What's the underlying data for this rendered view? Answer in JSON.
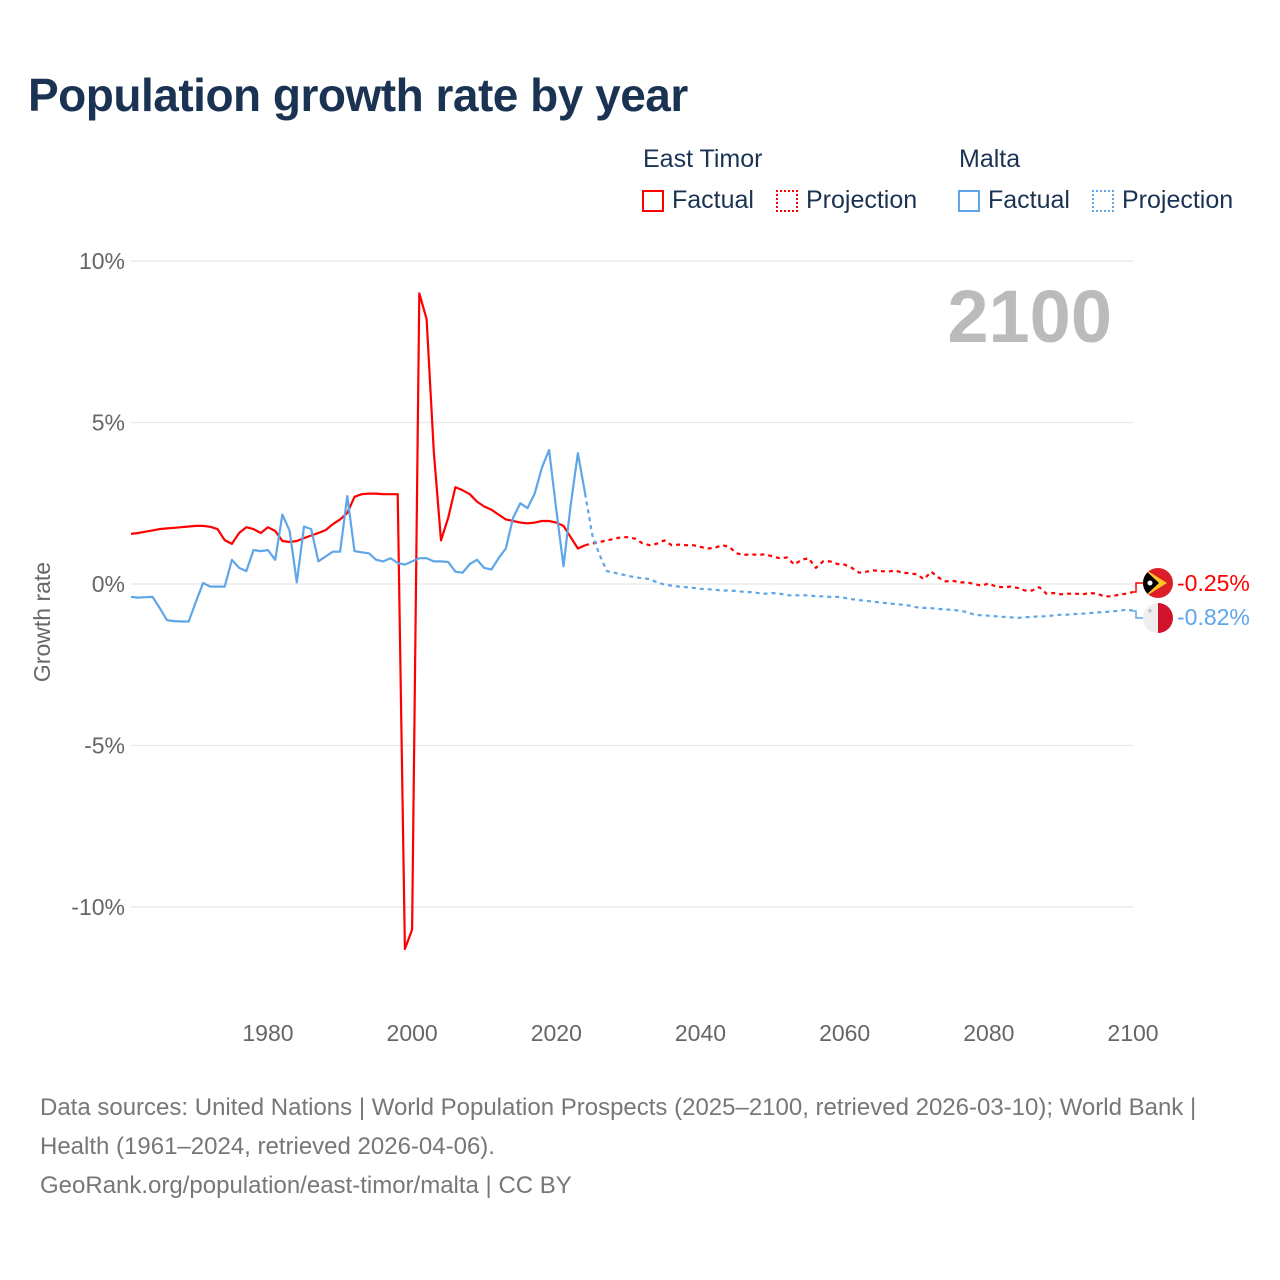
{
  "title": "Population growth rate by year",
  "legend": {
    "groups": [
      {
        "name": "East Timor",
        "color": "#ff0000",
        "items": [
          "Factual",
          "Projection"
        ]
      },
      {
        "name": "Malta",
        "color": "#5ea6e8",
        "items": [
          "Factual",
          "Projection"
        ]
      }
    ]
  },
  "year_label": "2100",
  "end_labels": {
    "east_timor": "-0.25%",
    "malta": "-0.82%"
  },
  "footer": {
    "sources": "Data sources: United Nations | World Population Prospects (2025–2100, retrieved 2026-03-10); World Bank | Health (1961–2024, retrieved 2026-04-06).",
    "credit": "GeoRank.org/population/east-timor/malta | CC BY"
  },
  "chart_data": {
    "type": "line",
    "title": "Population growth rate by year",
    "xlabel": "",
    "ylabel": "Growth rate",
    "xlim": [
      1961,
      2100
    ],
    "ylim": [
      -12,
      10
    ],
    "yticks": [
      10,
      5,
      0,
      -5,
      -10
    ],
    "ytick_labels": [
      "10%",
      "5%",
      "0%",
      "-5%",
      "-10%"
    ],
    "xticks": [
      1980,
      2000,
      2020,
      2040,
      2060,
      2080,
      2100
    ],
    "xtick_labels": [
      "1980",
      "2000",
      "2020",
      "2040",
      "2060",
      "2080",
      "2100"
    ],
    "grid": true,
    "legend_position": "top-right",
    "series": [
      {
        "name": "East Timor Factual",
        "color": "#ff0000",
        "style": "solid",
        "start": 1961,
        "values": [
          1.55,
          1.58,
          1.62,
          1.66,
          1.7,
          1.72,
          1.74,
          1.76,
          1.78,
          1.8,
          1.8,
          1.77,
          1.7,
          1.36,
          1.24,
          1.58,
          1.76,
          1.7,
          1.58,
          1.76,
          1.64,
          1.33,
          1.3,
          1.33,
          1.42,
          1.5,
          1.58,
          1.67,
          1.85,
          2.0,
          2.2,
          2.7,
          2.78,
          2.8,
          2.8,
          2.78,
          2.78,
          2.78,
          -11.3,
          -10.7,
          9.0,
          8.2,
          4.1,
          1.35,
          2.05,
          3.0,
          2.9,
          2.78,
          2.55,
          2.4,
          2.3,
          2.15,
          2.0,
          1.95,
          1.9,
          1.88,
          1.9,
          1.95,
          1.95,
          1.9,
          1.8,
          1.45,
          1.1,
          1.2
        ]
      },
      {
        "name": "East Timor Projection",
        "color": "#ff0000",
        "style": "dotted",
        "start": 2025,
        "values": [
          1.25,
          1.3,
          1.35,
          1.4,
          1.45,
          1.45,
          1.4,
          1.25,
          1.2,
          1.25,
          1.35,
          1.2,
          1.22,
          1.2,
          1.2,
          1.15,
          1.1,
          1.12,
          1.2,
          1.15,
          0.95,
          0.9,
          0.92,
          0.9,
          0.92,
          0.85,
          0.8,
          0.82,
          0.6,
          0.75,
          0.8,
          0.5,
          0.7,
          0.7,
          0.62,
          0.6,
          0.5,
          0.35,
          0.38,
          0.42,
          0.4,
          0.38,
          0.42,
          0.35,
          0.33,
          0.3,
          0.15,
          0.38,
          0.2,
          0.08,
          0.1,
          0.05,
          0.05,
          0.0,
          -0.05,
          0.02,
          -0.08,
          -0.1,
          -0.08,
          -0.12,
          -0.2,
          -0.2,
          -0.1,
          -0.3,
          -0.28,
          -0.32,
          -0.3,
          -0.3,
          -0.32,
          -0.28,
          -0.3,
          -0.38,
          -0.38,
          -0.33,
          -0.3,
          -0.25
        ]
      },
      {
        "name": "Malta Factual",
        "color": "#5ea6e8",
        "style": "solid",
        "start": 1961,
        "values": [
          -0.4,
          -0.42,
          -0.41,
          -0.4,
          -0.75,
          -1.12,
          -1.15,
          -1.16,
          -1.16,
          -0.55,
          0.03,
          -0.08,
          -0.08,
          -0.08,
          0.75,
          0.5,
          0.4,
          1.05,
          1.02,
          1.05,
          0.75,
          2.15,
          1.65,
          0.05,
          1.78,
          1.7,
          0.7,
          0.85,
          1.0,
          1.0,
          2.72,
          1.02,
          0.98,
          0.95,
          0.75,
          0.7,
          0.8,
          0.65,
          0.6,
          0.7,
          0.8,
          0.8,
          0.7,
          0.7,
          0.68,
          0.38,
          0.35,
          0.62,
          0.75,
          0.5,
          0.45,
          0.8,
          1.1,
          2.05,
          2.5,
          2.35,
          2.8,
          3.6,
          4.15,
          2.3,
          0.55,
          2.45,
          4.05,
          2.8
        ]
      },
      {
        "name": "Malta Projection",
        "color": "#5ea6e8",
        "style": "dotted",
        "start": 2025,
        "values": [
          1.5,
          0.9,
          0.4,
          0.35,
          0.3,
          0.25,
          0.2,
          0.18,
          0.15,
          0.05,
          -0.02,
          -0.05,
          -0.08,
          -0.1,
          -0.12,
          -0.15,
          -0.16,
          -0.18,
          -0.2,
          -0.2,
          -0.22,
          -0.24,
          -0.25,
          -0.28,
          -0.3,
          -0.28,
          -0.3,
          -0.35,
          -0.35,
          -0.35,
          -0.35,
          -0.38,
          -0.38,
          -0.4,
          -0.4,
          -0.43,
          -0.47,
          -0.5,
          -0.52,
          -0.55,
          -0.57,
          -0.6,
          -0.62,
          -0.64,
          -0.67,
          -0.72,
          -0.74,
          -0.75,
          -0.77,
          -0.79,
          -0.8,
          -0.83,
          -0.87,
          -0.95,
          -0.97,
          -0.98,
          -1.0,
          -1.02,
          -1.03,
          -1.05,
          -1.03,
          -1.02,
          -1.0,
          -1.0,
          -0.97,
          -0.95,
          -0.95,
          -0.93,
          -0.92,
          -0.9,
          -0.88,
          -0.87,
          -0.85,
          -0.83,
          -0.8,
          -0.82
        ]
      }
    ]
  }
}
